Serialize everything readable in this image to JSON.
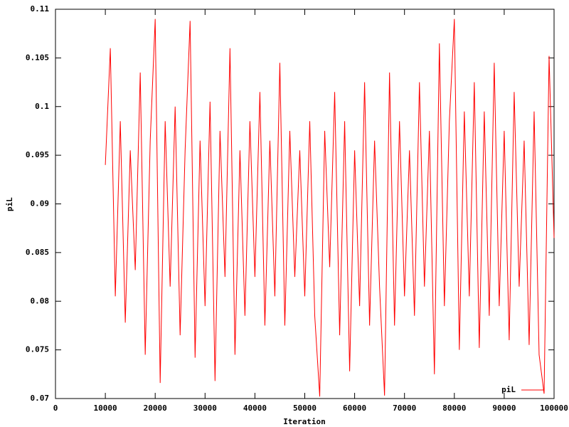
{
  "chart_data": {
    "type": "line",
    "x_label": "Iteration",
    "y_label": "piL",
    "xlim": [
      0,
      100000
    ],
    "xticks": [
      0,
      10000,
      20000,
      30000,
      40000,
      50000,
      60000,
      70000,
      80000,
      90000,
      100000
    ],
    "ylim": [
      0.07,
      0.11
    ],
    "yticks": [
      0.07,
      0.075,
      0.08,
      0.085,
      0.09,
      0.095,
      0.1,
      0.105,
      0.11
    ],
    "legend": "bottom-right",
    "grid": false,
    "x": [
      10000,
      11000,
      12000,
      13000,
      14000,
      15000,
      16000,
      17000,
      18000,
      19000,
      20000,
      21000,
      22000,
      23000,
      24000,
      25000,
      26000,
      27000,
      28000,
      29000,
      30000,
      31000,
      32000,
      33000,
      34000,
      35000,
      36000,
      37000,
      38000,
      39000,
      40000,
      41000,
      42000,
      43000,
      44000,
      45000,
      46000,
      47000,
      48000,
      49000,
      50000,
      51000,
      52000,
      53000,
      54000,
      55000,
      56000,
      57000,
      58000,
      59000,
      60000,
      61000,
      62000,
      63000,
      64000,
      65000,
      66000,
      67000,
      68000,
      69000,
      70000,
      71000,
      72000,
      73000,
      74000,
      75000,
      76000,
      77000,
      78000,
      79000,
      80000,
      81000,
      82000,
      83000,
      84000,
      85000,
      86000,
      87000,
      88000,
      89000,
      90000,
      91000,
      92000,
      93000,
      94000,
      95000,
      96000,
      97000,
      98000,
      99000,
      100000
    ],
    "series": [
      {
        "name": "piL",
        "color": "#ff0000",
        "values": [
          0.094,
          0.106,
          0.0805,
          0.0985,
          0.0778,
          0.0955,
          0.0832,
          0.1035,
          0.0745,
          0.0965,
          0.109,
          0.0716,
          0.0985,
          0.0815,
          0.1,
          0.0765,
          0.0955,
          0.1088,
          0.0742,
          0.0965,
          0.0795,
          0.1005,
          0.0718,
          0.0975,
          0.0825,
          0.106,
          0.0745,
          0.0955,
          0.0785,
          0.0985,
          0.0825,
          0.1015,
          0.0775,
          0.0965,
          0.0805,
          0.1045,
          0.0775,
          0.0975,
          0.0825,
          0.0955,
          0.0805,
          0.0985,
          0.0785,
          0.0702,
          0.0975,
          0.0835,
          0.1015,
          0.0765,
          0.0985,
          0.0728,
          0.0955,
          0.0795,
          0.1025,
          0.0775,
          0.0965,
          0.0815,
          0.0703,
          0.1035,
          0.0775,
          0.0985,
          0.0805,
          0.0955,
          0.0785,
          0.1025,
          0.0815,
          0.0975,
          0.0725,
          0.1065,
          0.0795,
          0.0985,
          0.109,
          0.075,
          0.0995,
          0.0805,
          0.1025,
          0.0752,
          0.0995,
          0.0785,
          0.1045,
          0.0795,
          0.0975,
          0.076,
          0.1015,
          0.0815,
          0.0965,
          0.0755,
          0.0995,
          0.0745,
          0.0705,
          0.1052,
          0.0865
        ]
      }
    ]
  }
}
